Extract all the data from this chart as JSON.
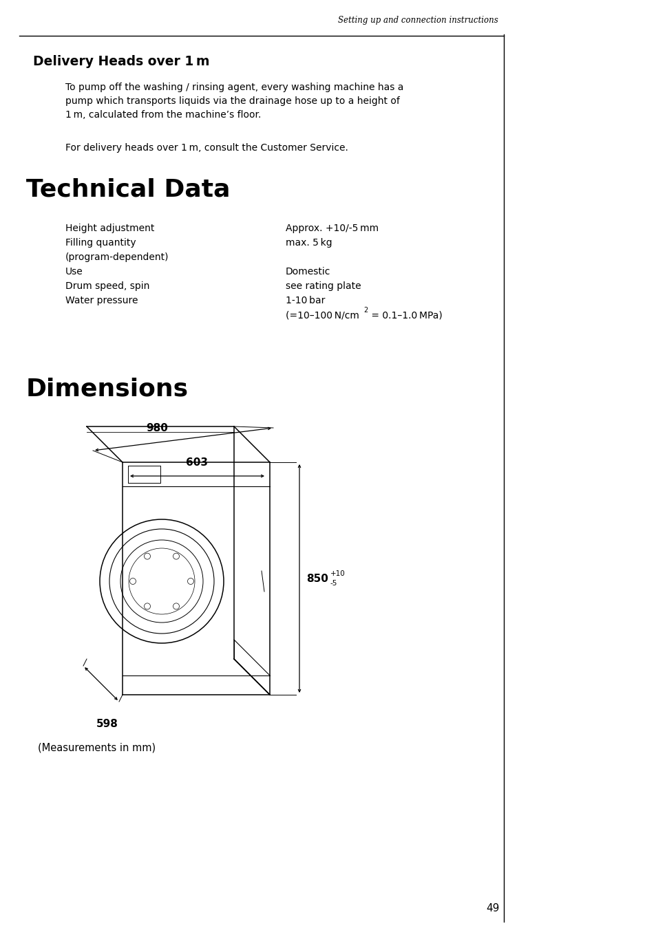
{
  "bg_color": "#ffffff",
  "font_color": "#000000",
  "header_text": "Setting up and connection instructions",
  "section1_title": "Delivery Heads over 1 m",
  "section1_body1": "To pump off the washing / rinsing agent, every washing machine has a\npump which transports liquids via the drainage hose up to a height of\n1 m, calculated from the machine’s floor.",
  "section1_body2": "For delivery heads over 1 m, consult the Customer Service.",
  "section2_title": "Technical Data",
  "rows_left": [
    "Height adjustment",
    "Filling quantity",
    "(program-dependent)",
    "Use",
    "Drum speed, spin",
    "Water pressure"
  ],
  "rows_right": [
    "Approx. +10/-5 mm",
    "max. 5 kg",
    "",
    "Domestic",
    "see rating plate",
    "1-10 bar"
  ],
  "water_pressure_line2_pre": "(=10–100 N/cm",
  "water_pressure_line2_post": " = 0.1–1.0 MPa)",
  "section3_title": "Dimensions",
  "dim_980": "980",
  "dim_603": "603",
  "dim_850": "850",
  "dim_850_sup": "+10",
  "dim_850_sub": "-5",
  "dim_598": "598",
  "measurements_note": "(Measurements in mm)",
  "page_number": "49"
}
